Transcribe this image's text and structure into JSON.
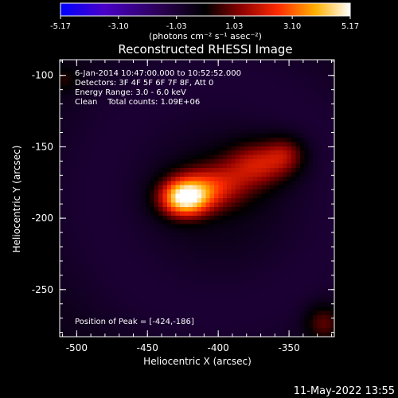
{
  "chart_data": {
    "type": "heatmap",
    "title": "Reconstructed RHESSI Image",
    "xlabel": "Heliocentric X (arcsec)",
    "ylabel": "Heliocentric Y (arcsec)",
    "xlim": [
      -512,
      -318
    ],
    "ylim": [
      -283,
      -89
    ],
    "xticks": [
      -500,
      -450,
      -400,
      -350
    ],
    "yticks": [
      -100,
      -150,
      -200,
      -250
    ],
    "colorbar": {
      "ticks": [
        "-5.17",
        "-3.10",
        "-1.03",
        "1.03",
        "3.10",
        "5.17"
      ],
      "min": -5.17,
      "max": 5.17,
      "units_label": "(photons cm⁻² s⁻¹ asec⁻²)"
    },
    "annotations": [
      "6-Jan-2014 10:47:00.000 to 10:52:52.000",
      "Detectors: 3F 4F 5F 6F 7F 8F, Att 0",
      "Energy Range: 3.0 - 6.0 keV",
      "Clean    Total counts: 1.09E+06"
    ],
    "peak_label": "Position of Peak = [-424,-186]",
    "peak": [
      -424,
      -186
    ],
    "peak_value": 5.17,
    "sources": [
      {
        "x": -424,
        "y": -186,
        "sx": 12,
        "sy": 9,
        "amp": 5.17
      },
      {
        "x": -405,
        "y": -178,
        "sx": 18,
        "sy": 11,
        "amp": 2.6
      },
      {
        "x": -372,
        "y": -162,
        "sx": 16,
        "sy": 11,
        "amp": 2.4
      },
      {
        "x": -352,
        "y": -155,
        "sx": 10,
        "sy": 9,
        "amp": 1.6
      },
      {
        "x": -326,
        "y": -273,
        "sx": 9,
        "sy": 9,
        "amp": 1.5
      },
      {
        "x": -508,
        "y": -103,
        "sx": 7,
        "sy": 6,
        "amp": 0.8
      }
    ]
  },
  "footer": {
    "timestamp": "11-May-2022 13:55"
  }
}
